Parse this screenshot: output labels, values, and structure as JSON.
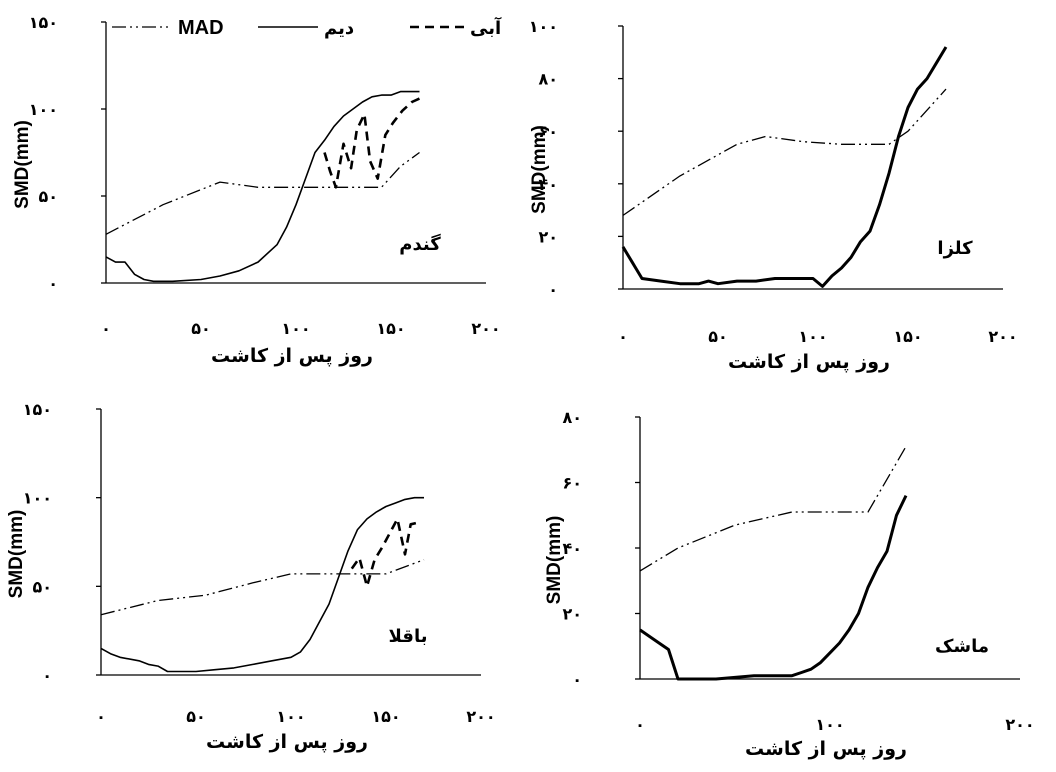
{
  "legend": {
    "mad": "MAD",
    "dryland": "دیم",
    "irrigated": "آبی"
  },
  "chart_data": [
    {
      "type": "line",
      "crop_label": "گندم",
      "ylabel": "SMD(mm)",
      "xlabel": "روز پس از کاشت",
      "xlim": [
        0,
        200
      ],
      "ylim": [
        0,
        150
      ],
      "xticks": [
        0,
        50,
        100,
        150,
        200
      ],
      "xtick_labels": [
        "۰",
        "۵۰",
        "۱۰۰",
        "۱۵۰",
        "۲۰۰"
      ],
      "yticks": [
        0,
        50,
        100,
        150
      ],
      "ytick_labels": [
        "۰",
        "۵۰",
        "۱۰۰",
        "۱۵۰"
      ],
      "series": [
        {
          "name": "MAD",
          "style": "dashdotdot",
          "width": 1.3,
          "x": [
            0,
            30,
            60,
            80,
            100,
            120,
            135,
            145,
            155,
            165
          ],
          "y": [
            28,
            45,
            58,
            55,
            55,
            55,
            55,
            55,
            67,
            75
          ]
        },
        {
          "name": "دیم",
          "style": "solid",
          "width": 1.6,
          "x": [
            0,
            5,
            10,
            15,
            20,
            25,
            35,
            50,
            60,
            70,
            80,
            90,
            95,
            100,
            105,
            110,
            115,
            120,
            125,
            130,
            135,
            140,
            145,
            150,
            155,
            160,
            165
          ],
          "y": [
            15,
            12,
            12,
            5,
            2,
            1,
            1,
            2,
            4,
            7,
            12,
            22,
            32,
            45,
            60,
            75,
            82,
            90,
            96,
            100,
            104,
            107,
            108,
            108,
            110,
            110,
            110
          ]
        },
        {
          "name": "آبی",
          "style": "dashed",
          "width": 2.6,
          "x": [
            115,
            118,
            121,
            125,
            129,
            132,
            136,
            139,
            143,
            147,
            151,
            156,
            161,
            165
          ],
          "y": [
            75,
            64,
            55,
            80,
            66,
            88,
            97,
            70,
            60,
            85,
            92,
            99,
            104,
            106
          ]
        }
      ]
    },
    {
      "type": "line",
      "crop_label": "کلزا",
      "ylabel": "SMD(mm)",
      "xlabel": "روز پس از کاشت",
      "xlim": [
        0,
        200
      ],
      "ylim": [
        0,
        100
      ],
      "xticks": [
        0,
        50,
        100,
        150,
        200
      ],
      "xtick_labels": [
        "۰",
        "۵۰",
        "۱۰۰",
        "۱۵۰",
        "۲۰۰"
      ],
      "yticks": [
        0,
        20,
        40,
        60,
        80,
        100
      ],
      "ytick_labels": [
        "۰",
        "۲۰",
        "۴۰",
        "۶۰",
        "۸۰",
        "۱۰۰"
      ],
      "series": [
        {
          "name": "MAD",
          "style": "dashdotdot",
          "width": 1.3,
          "x": [
            0,
            30,
            60,
            75,
            95,
            115,
            140,
            150,
            170
          ],
          "y": [
            28,
            43,
            55,
            58,
            56,
            55,
            55,
            60,
            76
          ]
        },
        {
          "name": "دیم",
          "style": "solid",
          "width": 3,
          "x": [
            0,
            5,
            10,
            20,
            30,
            40,
            45,
            50,
            60,
            70,
            80,
            90,
            100,
            105,
            110,
            115,
            120,
            125,
            130,
            135,
            140,
            145,
            150,
            155,
            160,
            165,
            170
          ],
          "y": [
            16,
            10,
            4,
            3,
            2,
            2,
            3,
            2,
            3,
            3,
            4,
            4,
            4,
            1,
            5,
            8,
            12,
            18,
            22,
            32,
            44,
            58,
            69,
            76,
            80,
            86,
            92
          ]
        }
      ]
    },
    {
      "type": "line",
      "crop_label": "باقلا",
      "ylabel": "SMD(mm)",
      "xlabel": "روز پس از کاشت",
      "xlim": [
        0,
        200
      ],
      "ylim": [
        0,
        150
      ],
      "xticks": [
        0,
        50,
        100,
        150,
        200
      ],
      "xtick_labels": [
        "۰",
        "۵۰",
        "۱۰۰",
        "۱۵۰",
        "۲۰۰"
      ],
      "yticks": [
        0,
        50,
        100,
        150
      ],
      "ytick_labels": [
        "۰",
        "۵۰",
        "۱۰۰",
        "۱۵۰"
      ],
      "series": [
        {
          "name": "MAD",
          "style": "dashdotdot",
          "width": 1.3,
          "x": [
            0,
            30,
            55,
            80,
            100,
            120,
            135,
            150,
            170
          ],
          "y": [
            34,
            42,
            45,
            52,
            57,
            57,
            57,
            57,
            65
          ]
        },
        {
          "name": "دیم",
          "style": "solid",
          "width": 1.6,
          "x": [
            0,
            5,
            10,
            20,
            25,
            30,
            35,
            40,
            50,
            60,
            70,
            80,
            90,
            100,
            105,
            110,
            115,
            120,
            125,
            130,
            135,
            140,
            145,
            150,
            155,
            160,
            165,
            170
          ],
          "y": [
            15,
            12,
            10,
            8,
            6,
            5,
            2,
            2,
            2,
            3,
            4,
            6,
            8,
            10,
            13,
            20,
            30,
            40,
            55,
            70,
            82,
            88,
            92,
            95,
            97,
            99,
            100,
            100
          ]
        },
        {
          "name": "آبی",
          "style": "dashed",
          "width": 2.6,
          "x": [
            132,
            136,
            140,
            144,
            148,
            152,
            156,
            160,
            163,
            167
          ],
          "y": [
            60,
            66,
            50,
            65,
            72,
            80,
            88,
            68,
            85,
            86
          ]
        }
      ]
    },
    {
      "type": "line",
      "crop_label": "ماشک",
      "ylabel": "SMD(mm)",
      "xlabel": "روز پس از کاشت",
      "xlim": [
        0,
        200
      ],
      "ylim": [
        0,
        80
      ],
      "xticks": [
        0,
        100,
        200
      ],
      "xtick_labels": [
        "۰",
        "۱۰۰",
        "۲۰۰"
      ],
      "yticks": [
        0,
        20,
        40,
        60,
        80
      ],
      "ytick_labels": [
        "۰",
        "۲۰",
        "۴۰",
        "۶۰",
        "۸۰"
      ],
      "series": [
        {
          "name": "MAD",
          "style": "dashdotdot",
          "width": 1.3,
          "x": [
            0,
            20,
            50,
            80,
            100,
            120,
            140
          ],
          "y": [
            33,
            40,
            47,
            51,
            51,
            51,
            71
          ]
        },
        {
          "name": "دیم",
          "style": "solid",
          "width": 3,
          "x": [
            0,
            10,
            15,
            20,
            40,
            60,
            80,
            85,
            90,
            95,
            100,
            105,
            110,
            115,
            120,
            125,
            130,
            135,
            140
          ],
          "y": [
            15,
            11,
            9,
            0,
            0,
            1,
            1,
            2,
            3,
            5,
            8,
            11,
            15,
            20,
            28,
            34,
            39,
            50,
            56
          ]
        }
      ]
    }
  ]
}
